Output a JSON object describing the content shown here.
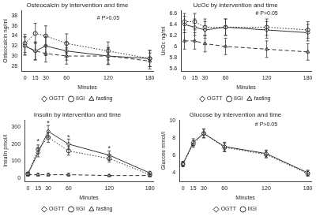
{
  "chart_data": [
    {
      "type": "line",
      "title": "Osteocalcin by intervention and time",
      "x_label": "Minutes",
      "y_label": "Osteocalcin ng/ml",
      "x": [
        0,
        15,
        30,
        60,
        120,
        180
      ],
      "xlim": [
        -5,
        185
      ],
      "xticks": [
        0,
        15,
        30,
        60,
        120,
        180
      ],
      "ylim": [
        27,
        39
      ],
      "yticks": [
        28,
        30,
        32,
        34,
        36,
        38
      ],
      "grid": false,
      "legend": "bottom",
      "annotations": [
        {
          "x": 120,
          "y": 37.5,
          "text": "# P>0.05"
        }
      ],
      "series": [
        {
          "name": "OGTT",
          "color": "#333333",
          "marker": "diamond",
          "line_style": "solid",
          "values": [
            32,
            31,
            32,
            31,
            30,
            29.5
          ],
          "errors": [
            1.8,
            1.8,
            1.9,
            1.8,
            1.7,
            1.6
          ]
        },
        {
          "name": "IIGI",
          "color": "#333333",
          "marker": "circle",
          "line_style": "dotted",
          "values": [
            32.5,
            34.5,
            34,
            32.5,
            31,
            29.5
          ],
          "errors": [
            1.8,
            2,
            2,
            1.9,
            1.8,
            1.6
          ]
        },
        {
          "name": "fasting",
          "color": "#333333",
          "marker": "triangle",
          "line_style": "dashed",
          "values": [
            32,
            31,
            30.5,
            30,
            30,
            29
          ],
          "errors": [
            1.8,
            1.7,
            1.7,
            1.6,
            1.6,
            1.6
          ]
        }
      ]
    },
    {
      "type": "line",
      "title": "UcOc by intervention and time",
      "x_label": "Minutes",
      "y_label": "UcOc ng/ml",
      "x": [
        0,
        15,
        30,
        60,
        120,
        180
      ],
      "xlim": [
        -5,
        185
      ],
      "xticks": [
        0,
        15,
        30,
        60,
        120,
        180
      ],
      "ylim": [
        5.55,
        6.65
      ],
      "yticks": [
        5.6,
        5.8,
        6,
        6.2,
        6.4,
        6.6
      ],
      "grid": false,
      "legend": "bottom",
      "annotations": [
        {
          "x": 120,
          "y": 6.6,
          "text": "# P>0.05"
        }
      ],
      "series": [
        {
          "name": "OGTT",
          "color": "#333333",
          "marker": "diamond",
          "line_style": "solid",
          "values": [
            6.4,
            6.35,
            6.3,
            6.35,
            6.3,
            6.25
          ],
          "errors": [
            0.15,
            0.15,
            0.15,
            0.15,
            0.15,
            0.15
          ]
        },
        {
          "name": "IIGI",
          "color": "#333333",
          "marker": "circle",
          "line_style": "dotted",
          "values": [
            6.45,
            6.45,
            6.35,
            6.35,
            6.35,
            6.3
          ],
          "errors": [
            0.15,
            0.15,
            0.15,
            0.15,
            0.15,
            0.15
          ]
        },
        {
          "name": "fasting",
          "color": "#333333",
          "marker": "triangle",
          "line_style": "dashed",
          "values": [
            6.1,
            6.1,
            6.05,
            6,
            5.95,
            5.9
          ],
          "errors": [
            0.15,
            0.15,
            0.15,
            0.15,
            0.15,
            0.15
          ]
        }
      ]
    },
    {
      "type": "line",
      "title": "Insulin by intervention and time",
      "x_label": "Minutes",
      "y_label": "Insulin pmol/l",
      "x": [
        0,
        15,
        30,
        60,
        120,
        180
      ],
      "xlim": [
        -5,
        185
      ],
      "xticks": [
        0,
        15,
        30,
        60,
        120,
        180
      ],
      "ylim": [
        -20,
        340
      ],
      "yticks": [
        0,
        100,
        200,
        300
      ],
      "grid": false,
      "legend": "bottom",
      "annotations": [
        {
          "x": 15,
          "y": 215,
          "text": "*"
        },
        {
          "x": 30,
          "y": 320,
          "text": "*"
        },
        {
          "x": 60,
          "y": 240,
          "text": "*"
        },
        {
          "x": 120,
          "y": 175,
          "text": "*"
        }
      ],
      "series": [
        {
          "name": "OGTT",
          "color": "#333333",
          "marker": "diamond",
          "line_style": "solid",
          "values": [
            25,
            150,
            275,
            200,
            135,
            30
          ],
          "errors": [
            10,
            25,
            35,
            30,
            25,
            10
          ]
        },
        {
          "name": "IIGI",
          "color": "#333333",
          "marker": "circle",
          "line_style": "dotted",
          "values": [
            25,
            170,
            240,
            160,
            115,
            20
          ],
          "errors": [
            10,
            25,
            30,
            25,
            20,
            8
          ]
        },
        {
          "name": "fasting",
          "color": "#333333",
          "marker": "triangle",
          "line_style": "dashed",
          "values": [
            20,
            20,
            20,
            20,
            15,
            15
          ],
          "errors": [
            8,
            8,
            8,
            8,
            6,
            6
          ]
        }
      ]
    },
    {
      "type": "line",
      "title": "Glucose by intervention and time",
      "x_label": "Minutes",
      "y_label": "Glucose mmol/l",
      "x": [
        0,
        15,
        30,
        60,
        120,
        180
      ],
      "xlim": [
        -5,
        185
      ],
      "xticks": [
        0,
        15,
        30,
        60,
        120,
        180
      ],
      "ylim": [
        3,
        10
      ],
      "yticks": [
        4,
        6,
        8,
        10
      ],
      "grid": false,
      "legend": "bottom",
      "annotations": [
        {
          "x": 120,
          "y": 9.5,
          "text": "# P>0.05"
        }
      ],
      "series": [
        {
          "name": "OGTT",
          "color": "#333333",
          "marker": "diamond",
          "line_style": "solid",
          "values": [
            5,
            7.5,
            8.5,
            7,
            6.2,
            4
          ],
          "errors": [
            0.3,
            0.4,
            0.5,
            0.5,
            0.4,
            0.3
          ]
        },
        {
          "name": "IIGI",
          "color": "#333333",
          "marker": "circle",
          "line_style": "dotted",
          "values": [
            5,
            7.3,
            8.5,
            6.9,
            6.1,
            3.9
          ],
          "errors": [
            0.3,
            0.4,
            0.5,
            0.5,
            0.4,
            0.3
          ]
        }
      ]
    }
  ]
}
